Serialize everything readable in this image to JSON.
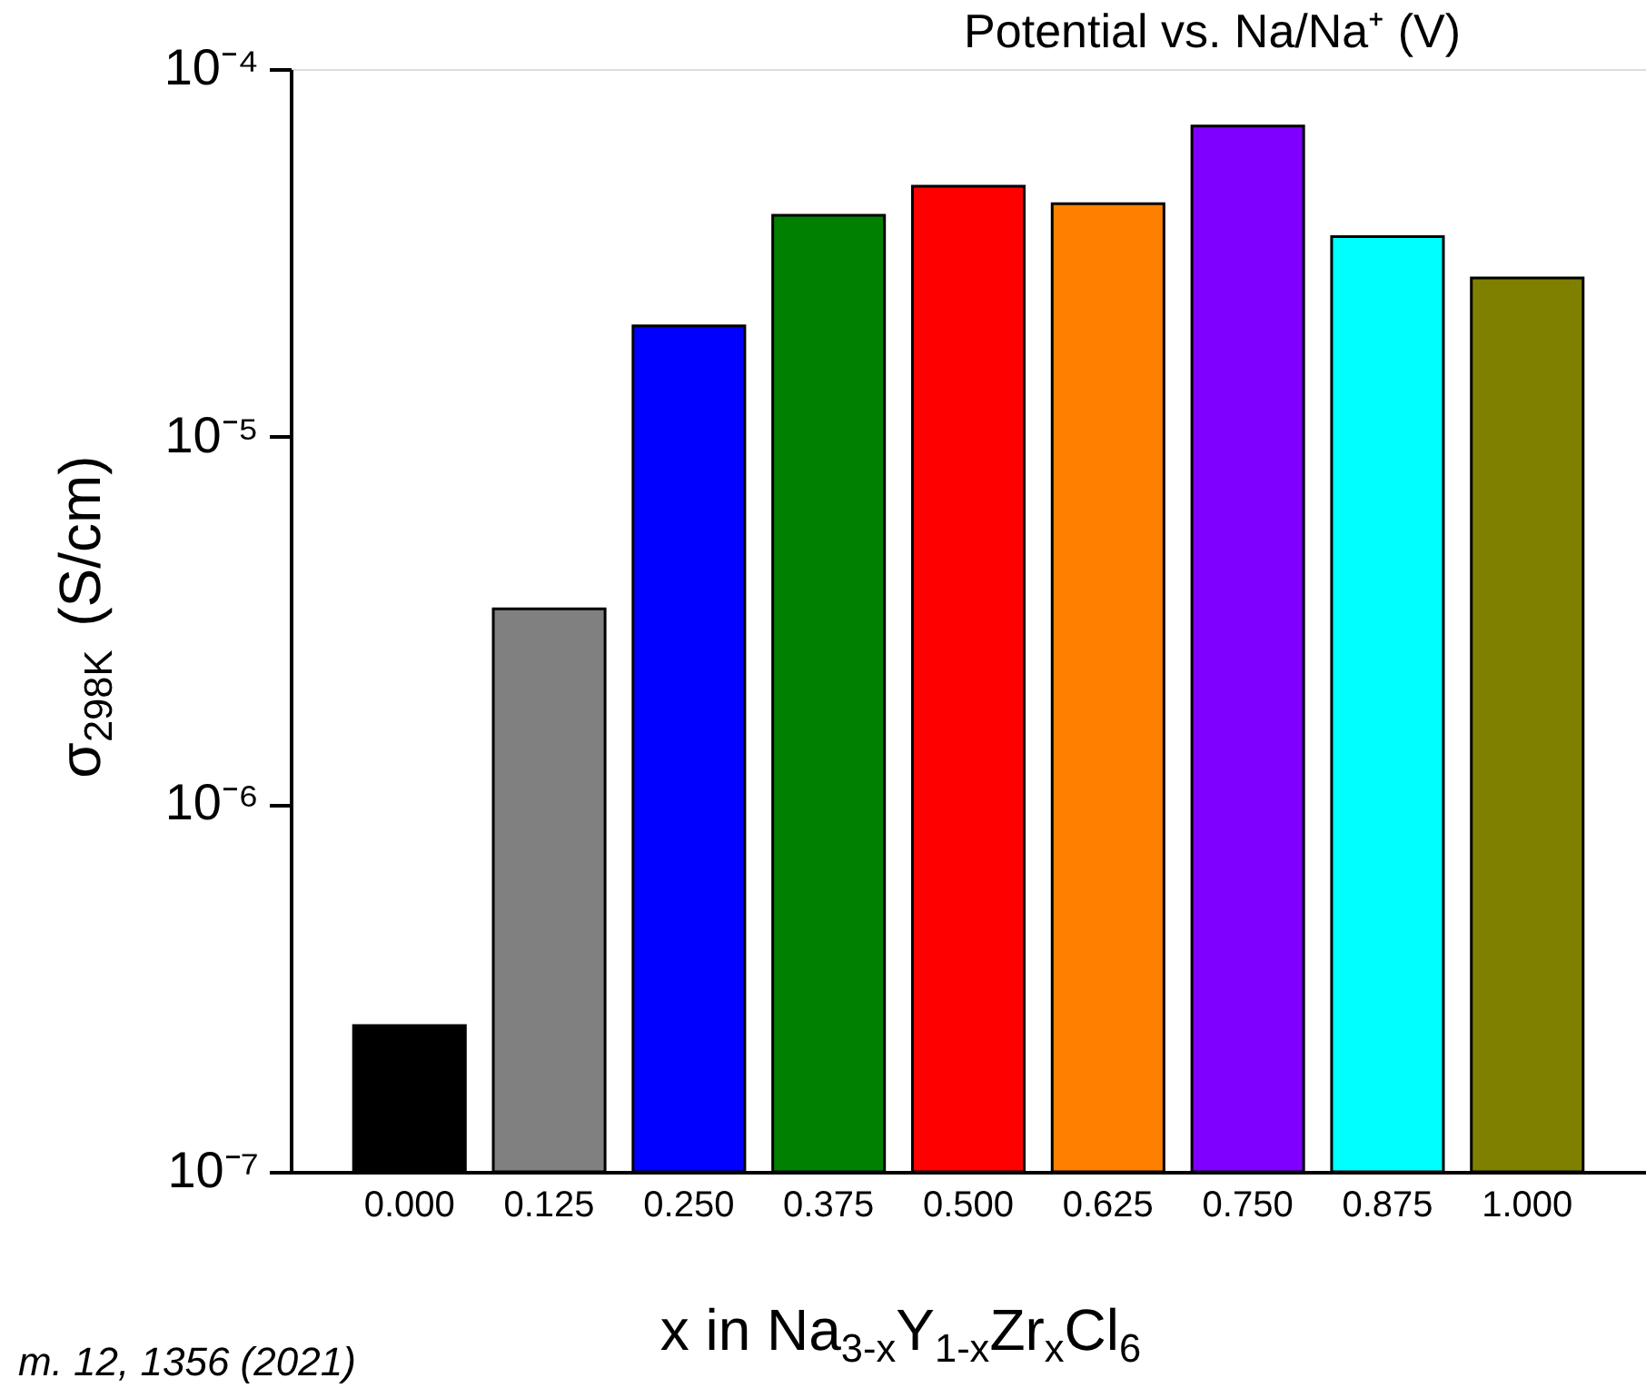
{
  "chart_data": {
    "type": "bar",
    "xlabel": "x in Na$_{3-x}$Y$_{1-x}$Zr$_{x}$Cl$_{6}$",
    "ylabel": "σ$_{298K}$ (S/cm)",
    "categories": [
      "0.000",
      "0.125",
      "0.250",
      "0.375",
      "0.500",
      "0.625",
      "0.750",
      "0.875",
      "1.000"
    ],
    "values": [
      2.5e-07,
      3.4e-06,
      2e-05,
      4e-05,
      4.8e-05,
      4.3e-05,
      7e-05,
      3.5e-05,
      2.7e-05
    ],
    "colors": [
      "#000000",
      "#808080",
      "#0000ff",
      "#008000",
      "#ff0000",
      "#ff8000",
      "#8000ff",
      "#00ffff",
      "#808000"
    ],
    "log": true,
    "ylim": [
      1e-07,
      0.0001
    ],
    "yticks": [
      {
        "value": 1e-07,
        "label": "10⁻⁷"
      },
      {
        "value": 1e-06,
        "label": "10⁻⁶"
      },
      {
        "value": 1e-05,
        "label": "10⁻⁵"
      },
      {
        "value": 0.0001,
        "label": "10⁻⁴"
      }
    ],
    "grid": false,
    "annotations": [
      "Potential vs. Na/Na⁺ (V)",
      "m. 12, 1356 (2021)"
    ]
  }
}
